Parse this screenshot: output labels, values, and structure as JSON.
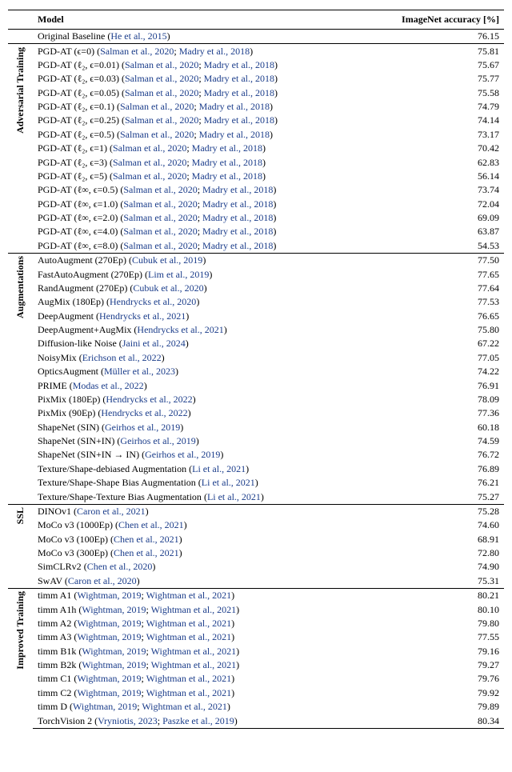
{
  "link_color": "#1a3c8a",
  "header": {
    "model": "Model",
    "accuracy": "ImageNet accuracy",
    "accuracy_unit": "[%]"
  },
  "groups": [
    {
      "label": "",
      "rows": [
        {
          "model": "Original Baseline ",
          "refs": [
            "He et al., 2015"
          ],
          "value": "76.15"
        }
      ]
    },
    {
      "label": "Adversarial Training",
      "rows": [
        {
          "model": "PGD-AT (ϵ=0) ",
          "refs": [
            "Salman et al., 2020",
            "Madry et al., 2018"
          ],
          "value": "75.81"
        },
        {
          "model": "PGD-AT (ℓ₂, ϵ=0.01) ",
          "refs": [
            "Salman et al., 2020",
            "Madry et al., 2018"
          ],
          "value": "75.67"
        },
        {
          "model": "PGD-AT (ℓ₂, ϵ=0.03) ",
          "refs": [
            "Salman et al., 2020",
            "Madry et al., 2018"
          ],
          "value": "75.77"
        },
        {
          "model": "PGD-AT (ℓ₂, ϵ=0.05) ",
          "refs": [
            "Salman et al., 2020",
            "Madry et al., 2018"
          ],
          "value": "75.58"
        },
        {
          "model": "PGD-AT (ℓ₂, ϵ=0.1) ",
          "refs": [
            "Salman et al., 2020",
            "Madry et al., 2018"
          ],
          "value": "74.79"
        },
        {
          "model": "PGD-AT (ℓ₂, ϵ=0.25) ",
          "refs": [
            "Salman et al., 2020",
            "Madry et al., 2018"
          ],
          "value": "74.14"
        },
        {
          "model": "PGD-AT (ℓ₂, ϵ=0.5) ",
          "refs": [
            "Salman et al., 2020",
            "Madry et al., 2018"
          ],
          "value": "73.17"
        },
        {
          "model": "PGD-AT (ℓ₂, ϵ=1) ",
          "refs": [
            "Salman et al., 2020",
            "Madry et al., 2018"
          ],
          "value": "70.42"
        },
        {
          "model": "PGD-AT (ℓ₂, ϵ=3) ",
          "refs": [
            "Salman et al., 2020",
            "Madry et al., 2018"
          ],
          "value": "62.83"
        },
        {
          "model": "PGD-AT (ℓ₂, ϵ=5) ",
          "refs": [
            "Salman et al., 2020",
            "Madry et al., 2018"
          ],
          "value": "56.14"
        },
        {
          "model": "PGD-AT (ℓ∞, ϵ=0.5) ",
          "refs": [
            "Salman et al., 2020",
            "Madry et al., 2018"
          ],
          "value": "73.74"
        },
        {
          "model": "PGD-AT (ℓ∞, ϵ=1.0) ",
          "refs": [
            "Salman et al., 2020",
            "Madry et al., 2018"
          ],
          "value": "72.04"
        },
        {
          "model": "PGD-AT (ℓ∞, ϵ=2.0) ",
          "refs": [
            "Salman et al., 2020",
            "Madry et al., 2018"
          ],
          "value": "69.09"
        },
        {
          "model": "PGD-AT (ℓ∞, ϵ=4.0) ",
          "refs": [
            "Salman et al., 2020",
            "Madry et al., 2018"
          ],
          "value": "63.87"
        },
        {
          "model": "PGD-AT (ℓ∞, ϵ=8.0) ",
          "refs": [
            "Salman et al., 2020",
            "Madry et al., 2018"
          ],
          "value": "54.53"
        }
      ]
    },
    {
      "label": "Augmentations",
      "rows": [
        {
          "model": "AutoAugment (270Ep) ",
          "refs": [
            "Cubuk et al., 2019"
          ],
          "value": "77.50"
        },
        {
          "model": "FastAutoAugment (270Ep) ",
          "refs": [
            "Lim et al., 2019"
          ],
          "value": "77.65"
        },
        {
          "model": "RandAugment (270Ep) ",
          "refs": [
            "Cubuk et al., 2020"
          ],
          "value": "77.64"
        },
        {
          "model": "AugMix (180Ep) ",
          "refs": [
            "Hendrycks et al., 2020"
          ],
          "value": "77.53"
        },
        {
          "model": "DeepAugment ",
          "refs": [
            "Hendrycks et al., 2021"
          ],
          "value": "76.65"
        },
        {
          "model": "DeepAugment+AugMix ",
          "refs": [
            "Hendrycks et al., 2021"
          ],
          "value": "75.80"
        },
        {
          "model": "Diffusion-like Noise ",
          "refs": [
            "Jaini et al., 2024"
          ],
          "value": "67.22"
        },
        {
          "model": "NoisyMix ",
          "refs": [
            "Erichson et al., 2022"
          ],
          "value": "77.05"
        },
        {
          "model": "OpticsAugment ",
          "refs": [
            "Müller et al., 2023"
          ],
          "value": "74.22"
        },
        {
          "model": "PRIME ",
          "refs": [
            "Modas et al., 2022"
          ],
          "value": "76.91"
        },
        {
          "model": "PixMix (180Ep) ",
          "refs": [
            "Hendrycks et al., 2022"
          ],
          "value": "78.09"
        },
        {
          "model": "PixMix (90Ep) ",
          "refs": [
            "Hendrycks et al., 2022"
          ],
          "value": "77.36"
        },
        {
          "model": "ShapeNet (SIN) ",
          "refs": [
            "Geirhos et al., 2019"
          ],
          "value": "60.18"
        },
        {
          "model": "ShapeNet (SIN+IN) ",
          "refs": [
            "Geirhos et al., 2019"
          ],
          "value": "74.59"
        },
        {
          "model": "ShapeNet (SIN+IN → IN) ",
          "refs": [
            "Geirhos et al., 2019"
          ],
          "value": "76.72"
        },
        {
          "model": "Texture/Shape-debiased Augmentation ",
          "refs": [
            "Li et al., 2021"
          ],
          "value": "76.89"
        },
        {
          "model": "Texture/Shape-Shape Bias Augmentation ",
          "refs": [
            "Li et al., 2021"
          ],
          "value": "76.21"
        },
        {
          "model": "Texture/Shape-Texture Bias Augmentation ",
          "refs": [
            "Li et al., 2021"
          ],
          "value": "75.27"
        }
      ]
    },
    {
      "label": "SSL",
      "rows": [
        {
          "model": "DINOv1 ",
          "refs": [
            "Caron et al., 2021"
          ],
          "value": "75.28"
        },
        {
          "model": "MoCo v3 (1000Ep) ",
          "refs": [
            "Chen et al., 2021"
          ],
          "value": "74.60"
        },
        {
          "model": "MoCo v3 (100Ep) ",
          "refs": [
            "Chen et al., 2021"
          ],
          "value": "68.91"
        },
        {
          "model": "MoCo v3 (300Ep) ",
          "refs": [
            "Chen et al., 2021"
          ],
          "value": "72.80"
        },
        {
          "model": "SimCLRv2 ",
          "refs": [
            "Chen et al., 2020"
          ],
          "value": "74.90"
        },
        {
          "model": "SwAV ",
          "refs": [
            "Caron et al., 2020"
          ],
          "value": "75.31"
        }
      ]
    },
    {
      "label": "Improved Training",
      "rows": [
        {
          "model": "timm A1 ",
          "refs": [
            "Wightman, 2019",
            "Wightman et al., 2021"
          ],
          "value": "80.21"
        },
        {
          "model": "timm A1h ",
          "refs": [
            "Wightman, 2019",
            "Wightman et al., 2021"
          ],
          "value": "80.10"
        },
        {
          "model": "timm A2 ",
          "refs": [
            "Wightman, 2019",
            "Wightman et al., 2021"
          ],
          "value": "79.80"
        },
        {
          "model": "timm A3 ",
          "refs": [
            "Wightman, 2019",
            "Wightman et al., 2021"
          ],
          "value": "77.55"
        },
        {
          "model": "timm B1k ",
          "refs": [
            "Wightman, 2019",
            "Wightman et al., 2021"
          ],
          "value": "79.16"
        },
        {
          "model": "timm B2k ",
          "refs": [
            "Wightman, 2019",
            "Wightman et al., 2021"
          ],
          "value": "79.27"
        },
        {
          "model": "timm C1 ",
          "refs": [
            "Wightman, 2019",
            "Wightman et al., 2021"
          ],
          "value": "79.76"
        },
        {
          "model": "timm C2 ",
          "refs": [
            "Wightman, 2019",
            "Wightman et al., 2021"
          ],
          "value": "79.92"
        },
        {
          "model": "timm D ",
          "refs": [
            "Wightman, 2019",
            "Wightman et al., 2021"
          ],
          "value": "79.89"
        },
        {
          "model": "TorchVision 2 ",
          "refs": [
            "Vryniotis, 2023",
            "Paszke et al., 2019"
          ],
          "value": "80.34"
        }
      ]
    }
  ]
}
